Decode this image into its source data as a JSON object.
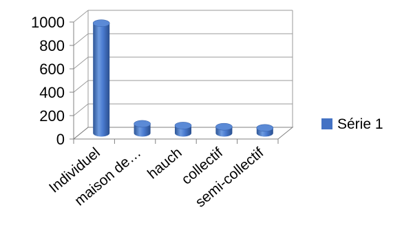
{
  "chart_data": {
    "type": "bar",
    "categories": [
      "Individuel",
      "maison de…",
      "hauch",
      "collectif",
      "semi-collectif"
    ],
    "series": [
      {
        "name": "Série 1",
        "values": [
          940,
          80,
          65,
          55,
          45
        ],
        "color": "#4472C4"
      }
    ],
    "yticks": [
      "0",
      "200",
      "400",
      "600",
      "800",
      "1000"
    ],
    "ylim": [
      0,
      1000
    ],
    "grid": true,
    "legend": "right",
    "style": "3d-cylinder"
  }
}
